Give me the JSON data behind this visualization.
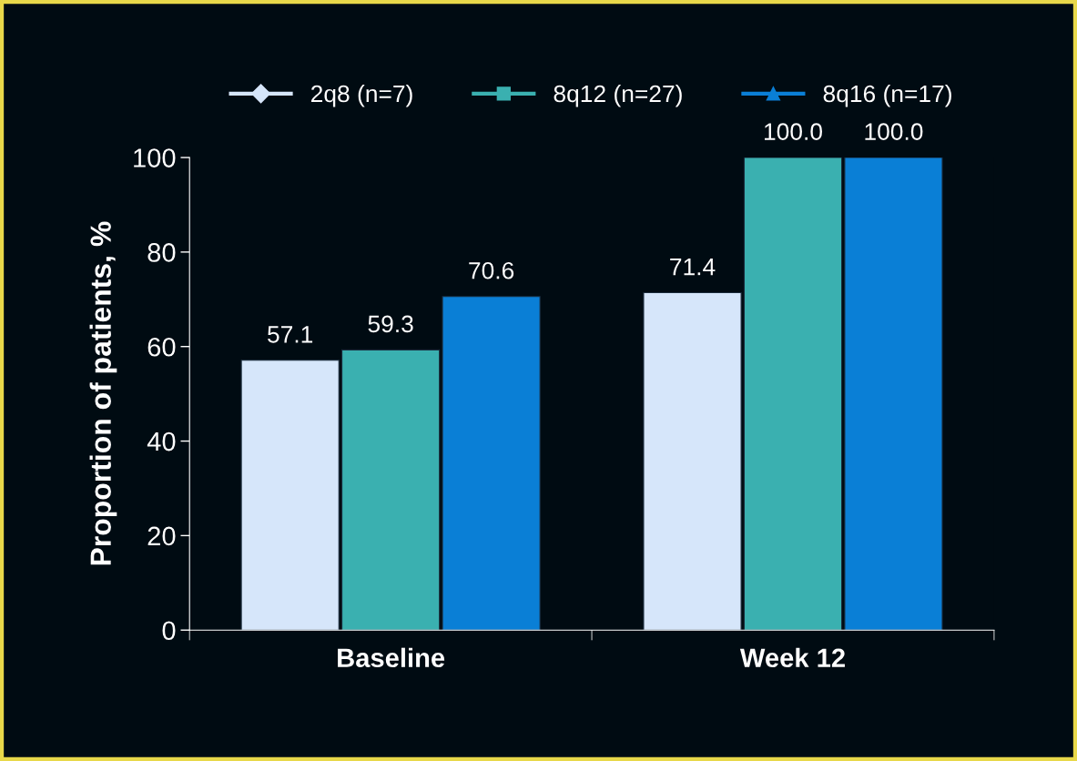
{
  "chart_data": {
    "type": "bar",
    "ylabel": "Proportion of patients, %",
    "categories": [
      "Baseline",
      "Week 12"
    ],
    "series": [
      {
        "name": "2q8 (n=7)",
        "color": "#d6e6fa",
        "marker": "diamond",
        "values": [
          57.1,
          71.4
        ],
        "value_labels": [
          "57.1",
          "71.4"
        ]
      },
      {
        "name": "8q12 (n=27)",
        "color": "#3ab0b0",
        "marker": "square",
        "values": [
          59.3,
          100
        ],
        "value_labels": [
          "59.3",
          "100.0"
        ]
      },
      {
        "name": "8q16 (n=17)",
        "color": "#0a7fd6",
        "marker": "triangle",
        "values": [
          70.6,
          100
        ],
        "value_labels": [
          "70.6",
          "100.0"
        ]
      }
    ],
    "ylim": [
      0,
      100
    ],
    "yticks": [
      0,
      20,
      40,
      60,
      80,
      100
    ],
    "legend": "top",
    "grid": false
  }
}
